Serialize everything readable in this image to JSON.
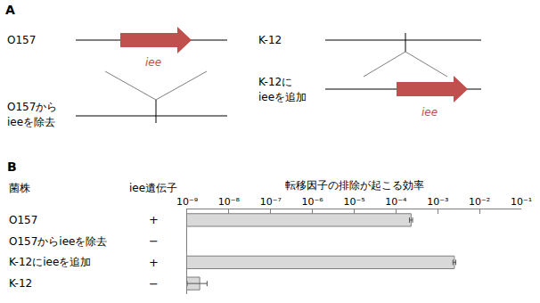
{
  "panels": [
    "A",
    "B"
  ],
  "diagram": {
    "gene": "iee",
    "strains": [
      {
        "name": "O157",
        "modified": [
          "O157から",
          "ieeを除去"
        ]
      },
      {
        "name": "K-12",
        "modified": [
          "K-12に",
          "ieeを追加"
        ]
      }
    ]
  },
  "chart_data": {
    "type": "bar",
    "orientation": "horizontal",
    "log": "x",
    "xlabel": "転移因子の排除が起こる効率",
    "columns": {
      "strain": "菌株",
      "gene": "iee遺伝子"
    },
    "categories": [
      "O157",
      "O157からieeを除去",
      "K-12にieeを追加",
      "K-12"
    ],
    "iee_gene": [
      "+",
      "−",
      "+",
      "−"
    ],
    "values": [
      0.00023,
      null,
      0.0025,
      2e-09
    ],
    "errors": [
      2e-05,
      null,
      0.0002,
      1e-09
    ],
    "color": "#d9d9d9",
    "xlim": [
      1e-09,
      0.1
    ],
    "xticks": [
      {
        "value": 1e-09,
        "label": "10⁻⁹"
      },
      {
        "value": 1e-08,
        "label": "10⁻⁸"
      },
      {
        "value": 1e-07,
        "label": "10⁻⁷"
      },
      {
        "value": 1e-06,
        "label": "10⁻⁶"
      },
      {
        "value": 1e-05,
        "label": "10⁻⁵"
      },
      {
        "value": 0.0001,
        "label": "10⁻⁴"
      },
      {
        "value": 0.001,
        "label": "10⁻³"
      },
      {
        "value": 0.01,
        "label": "10⁻²"
      },
      {
        "value": 0.1,
        "label": "10⁻¹"
      }
    ],
    "grid": false
  }
}
